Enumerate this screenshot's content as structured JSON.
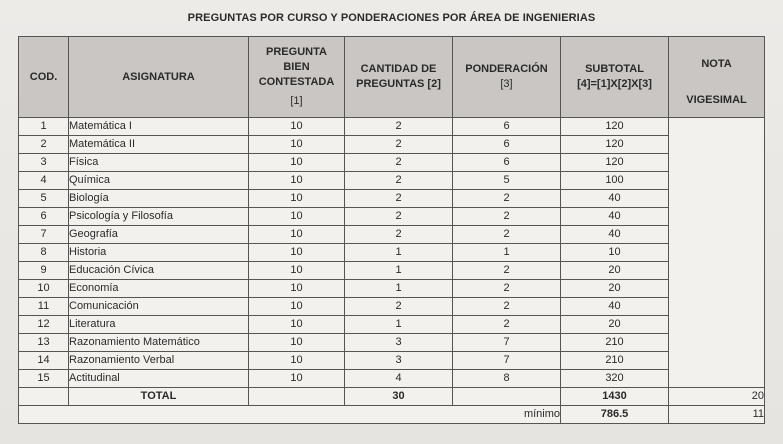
{
  "title": "PREGUNTAS POR CURSO Y PONDERACIONES POR ÁREA DE INGENIERIAS",
  "headers": {
    "cod": "COD.",
    "asignatura": "ASIGNATURA",
    "pregunta": "PREGUNTA BIEN CONTESTADA",
    "pregunta_ref": "[1]",
    "cantidad": "CANTIDAD DE PREGUNTAS [2]",
    "ponderacion": "PONDERACIÓN",
    "ponderacion_ref": "[3]",
    "subtotal": "SUBTOTAL",
    "subtotal_formula": "[4]=[1]X[2]X[3]",
    "nota_top": "NOTA",
    "nota_bottom": "VIGESIMAL"
  },
  "rows": [
    {
      "cod": "1",
      "asignatura": "Matemática I",
      "pregunta": "10",
      "cantidad": "2",
      "ponderacion": "6",
      "subtotal": "120"
    },
    {
      "cod": "2",
      "asignatura": "Matemática II",
      "pregunta": "10",
      "cantidad": "2",
      "ponderacion": "6",
      "subtotal": "120"
    },
    {
      "cod": "3",
      "asignatura": "Física",
      "pregunta": "10",
      "cantidad": "2",
      "ponderacion": "6",
      "subtotal": "120"
    },
    {
      "cod": "4",
      "asignatura": "Química",
      "pregunta": "10",
      "cantidad": "2",
      "ponderacion": "5",
      "subtotal": "100"
    },
    {
      "cod": "5",
      "asignatura": "Biología",
      "pregunta": "10",
      "cantidad": "2",
      "ponderacion": "2",
      "subtotal": "40"
    },
    {
      "cod": "6",
      "asignatura": "Psicología y Filosofía",
      "pregunta": "10",
      "cantidad": "2",
      "ponderacion": "2",
      "subtotal": "40"
    },
    {
      "cod": "7",
      "asignatura": "Geografía",
      "pregunta": "10",
      "cantidad": "2",
      "ponderacion": "2",
      "subtotal": "40"
    },
    {
      "cod": "8",
      "asignatura": "Historia",
      "pregunta": "10",
      "cantidad": "1",
      "ponderacion": "1",
      "subtotal": "10"
    },
    {
      "cod": "9",
      "asignatura": "Educación Cívica",
      "pregunta": "10",
      "cantidad": "1",
      "ponderacion": "2",
      "subtotal": "20"
    },
    {
      "cod": "10",
      "asignatura": "Economía",
      "pregunta": "10",
      "cantidad": "1",
      "ponderacion": "2",
      "subtotal": "20"
    },
    {
      "cod": "11",
      "asignatura": "Comunicación",
      "pregunta": "10",
      "cantidad": "2",
      "ponderacion": "2",
      "subtotal": "40"
    },
    {
      "cod": "12",
      "asignatura": "Literatura",
      "pregunta": "10",
      "cantidad": "1",
      "ponderacion": "2",
      "subtotal": "20"
    },
    {
      "cod": "13",
      "asignatura": "Razonamiento Matemático",
      "pregunta": "10",
      "cantidad": "3",
      "ponderacion": "7",
      "subtotal": "210"
    },
    {
      "cod": "14",
      "asignatura": "Razonamiento Verbal",
      "pregunta": "10",
      "cantidad": "3",
      "ponderacion": "7",
      "subtotal": "210"
    },
    {
      "cod": "15",
      "asignatura": "Actitudinal",
      "pregunta": "10",
      "cantidad": "4",
      "ponderacion": "8",
      "subtotal": "320"
    }
  ],
  "total": {
    "label": "TOTAL",
    "cantidad": "30",
    "subtotal": "1430",
    "nota": "20"
  },
  "minimo": {
    "label": "mínimo",
    "subtotal": "786.5",
    "nota": "11"
  },
  "colors": {
    "header_bg": "#c9c6c3",
    "cell_bg": "#f2f1ee",
    "border": "#555555"
  }
}
